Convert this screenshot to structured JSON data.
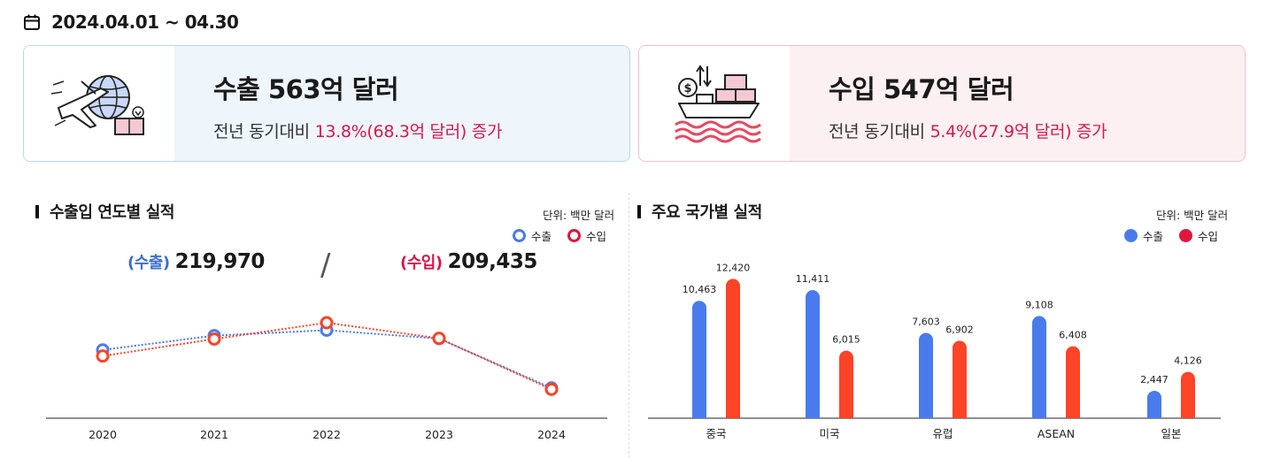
{
  "period": "2024.04.01 ~ 04.30",
  "export_card": {
    "title": "수출 563억 달러",
    "sub_prefix": "전년 동기대비 ",
    "sub_highlight": "13.8%(68.3억 달러) 증가"
  },
  "import_card": {
    "title": "수입 547억 달러",
    "sub_prefix": "전년 동기대비 ",
    "sub_highlight": "5.4%(27.9억 달러) 증가"
  },
  "colors": {
    "export": "#4a7bec",
    "import": "#ff4326",
    "import_label": "#d6194a",
    "export_label": "#3c6fcf",
    "highlight": "#d6194a"
  },
  "left_panel": {
    "title": "수출입 연도별 실적",
    "unit": "단위: 백만 달러",
    "legend_export": "수출",
    "legend_import": "수입",
    "total_export_label": "(수출)",
    "total_export_value": "219,970",
    "total_import_label": "(수입)",
    "total_import_value": "209,435",
    "separator": "/"
  },
  "right_panel": {
    "title": "주요 국가별 실적",
    "unit": "단위: 백만 달러",
    "legend_export": "수출",
    "legend_import": "수입"
  },
  "chart_data": [
    {
      "type": "line",
      "x": [
        "2020",
        "2021",
        "2022",
        "2023",
        "2024"
      ],
      "series": [
        {
          "name": "수출",
          "values": [
            40500,
            51000,
            55000,
            48800,
            12500
          ]
        },
        {
          "name": "수입",
          "values": [
            36000,
            48500,
            60500,
            49000,
            11500
          ]
        }
      ],
      "legend_position": "top-right",
      "grid": false
    },
    {
      "type": "bar",
      "categories": [
        "중국",
        "미국",
        "유럽",
        "ASEAN",
        "일본"
      ],
      "series": [
        {
          "name": "수출",
          "values": [
            10463,
            11411,
            7603,
            9108,
            2447
          ],
          "labels": [
            "10,463",
            "11,411",
            "7,603",
            "9,108",
            "2,447"
          ]
        },
        {
          "name": "수입",
          "values": [
            12420,
            6015,
            6902,
            6408,
            4126
          ],
          "labels": [
            "12,420",
            "6,015",
            "6,902",
            "6,408",
            "4,126"
          ]
        }
      ],
      "ylim": [
        0,
        13000
      ],
      "legend_position": "top-right",
      "grid": false
    }
  ]
}
